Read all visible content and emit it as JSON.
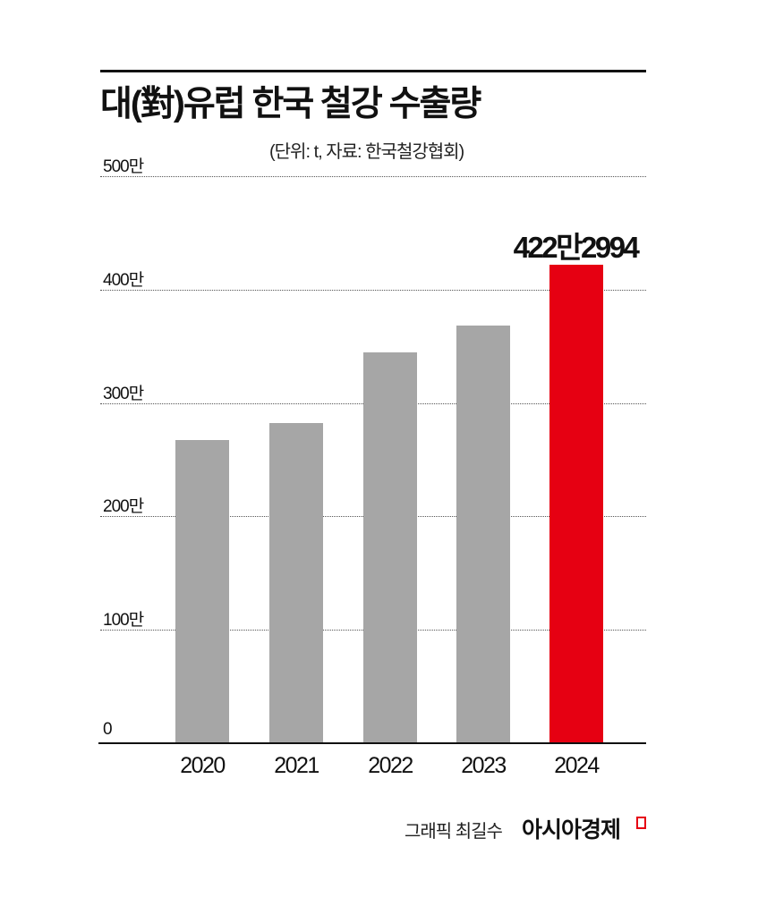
{
  "header": {
    "title": "대(對)유럽 한국 철강 수출량",
    "subtitle": "(단위: t, 자료: 한국철강협회)"
  },
  "chart_data": {
    "type": "bar",
    "title": "대(對)유럽 한국 철강 수출량",
    "subtitle": "(단위: t, 자료: 한국철강협회)",
    "xlabel": "",
    "ylabel": "",
    "unit": "t",
    "source": "한국철강협회",
    "categories": [
      "2020",
      "2021",
      "2022",
      "2023",
      "2024"
    ],
    "values": [
      2670000,
      2820000,
      3450000,
      3680000,
      4222994
    ],
    "highlight_index": 4,
    "highlight_label": "422만2994",
    "ylim": [
      0,
      5000000
    ],
    "yticks": [
      0,
      1000000,
      2000000,
      3000000,
      4000000,
      5000000
    ],
    "ytick_labels": [
      "0",
      "100만",
      "200만",
      "300만",
      "400만",
      "500만"
    ],
    "grid": true,
    "grid_style": "dotted",
    "legend": "none",
    "colors": {
      "bar": "#a6a6a6",
      "highlight": "#e60012"
    }
  },
  "footer": {
    "credit": "그래픽 최길수",
    "brand": "아시아경제"
  }
}
